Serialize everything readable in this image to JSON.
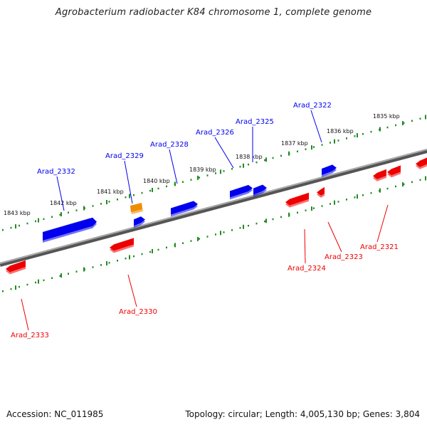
{
  "title": "Agrobacterium radiobacter K84 chromosome 1, complete genome",
  "footer": {
    "accession": "Accession: NC_011985",
    "topology": "Topology: circular; Length: 4,005,130 bp; Genes: 3,804"
  },
  "colors": {
    "forward": "#0000ee",
    "reverse": "#ee0000",
    "other": "#f08c00",
    "scale_ticks": "#228b22",
    "backbone": "#888888"
  },
  "scale": {
    "unit": "kbp",
    "ticks": [
      {
        "kbp": 1843,
        "label": "1843 kbp"
      },
      {
        "kbp": 1842,
        "label": "1842 kbp"
      },
      {
        "kbp": 1841,
        "label": "1841 kbp"
      },
      {
        "kbp": 1840,
        "label": "1840 kbp"
      },
      {
        "kbp": 1839,
        "label": "1839 kbp"
      },
      {
        "kbp": 1838,
        "label": "1838 kbp"
      },
      {
        "kbp": 1837,
        "label": "1837 kbp"
      },
      {
        "kbp": 1836,
        "label": "1836 kbp"
      },
      {
        "kbp": 1835,
        "label": "1835 kbp"
      }
    ]
  },
  "genes": [
    {
      "label": "Arad_2332",
      "strand": "forward"
    },
    {
      "label": "Arad_2329",
      "strand": "forward"
    },
    {
      "label": "Arad_2328",
      "strand": "forward"
    },
    {
      "label": "Arad_2326",
      "strand": "forward"
    },
    {
      "label": "Arad_2325",
      "strand": "forward"
    },
    {
      "label": "Arad_2322",
      "strand": "forward"
    },
    {
      "label": "Arad_2333",
      "strand": "reverse"
    },
    {
      "label": "Arad_2330",
      "strand": "reverse"
    },
    {
      "label": "Arad_2324",
      "strand": "reverse"
    },
    {
      "label": "Arad_2323",
      "strand": "reverse"
    },
    {
      "label": "Arad_2321",
      "strand": "reverse"
    }
  ]
}
